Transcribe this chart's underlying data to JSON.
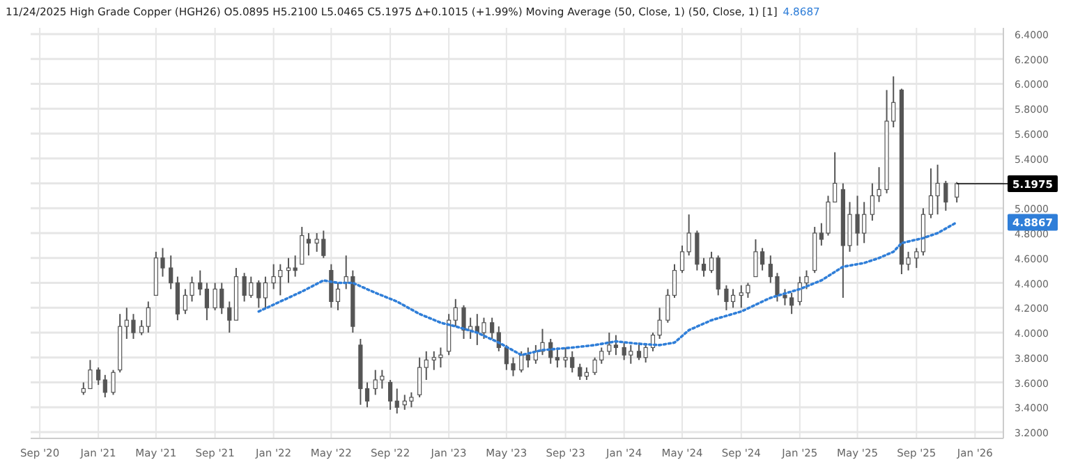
{
  "chart_data": {
    "type": "candlestick",
    "title": "11/24/2025 High Grade Copper (HGH26) O5.0895 H5.2100 L5.0465 C5.1975 Δ+0.1015 (+1.99%) Moving Average (50, Close, 1)  (50, Close, 1) [1]",
    "subtitle": "4.8687",
    "x": [
      "2020-12-01",
      "2020-12-15",
      "2021-01-01",
      "2021-01-15",
      "2021-02-01",
      "2021-02-15",
      "2021-03-01",
      "2021-03-15",
      "2021-04-01",
      "2021-04-15",
      "2021-05-01",
      "2021-05-15",
      "2021-06-01",
      "2021-06-15",
      "2021-07-01",
      "2021-07-15",
      "2021-08-01",
      "2021-08-15",
      "2021-09-01",
      "2021-09-15",
      "2021-10-01",
      "2021-10-15",
      "2021-11-01",
      "2021-11-15",
      "2021-12-01",
      "2021-12-15",
      "2022-01-01",
      "2022-01-15",
      "2022-02-01",
      "2022-02-15",
      "2022-03-01",
      "2022-03-15",
      "2022-04-01",
      "2022-04-15",
      "2022-05-01",
      "2022-05-15",
      "2022-06-01",
      "2022-06-15",
      "2022-07-01",
      "2022-07-15",
      "2022-08-01",
      "2022-08-15",
      "2022-09-01",
      "2022-09-15",
      "2022-10-01",
      "2022-10-15",
      "2022-11-01",
      "2022-11-15",
      "2022-12-01",
      "2022-12-15",
      "2023-01-01",
      "2023-01-15",
      "2023-02-01",
      "2023-02-15",
      "2023-03-01",
      "2023-03-15",
      "2023-04-01",
      "2023-04-15",
      "2023-05-01",
      "2023-05-15",
      "2023-06-01",
      "2023-06-15",
      "2023-07-01",
      "2023-07-15",
      "2023-08-01",
      "2023-08-15",
      "2023-09-01",
      "2023-09-15",
      "2023-10-01",
      "2023-10-15",
      "2023-11-01",
      "2023-11-15",
      "2023-12-01",
      "2023-12-15",
      "2024-01-01",
      "2024-01-15",
      "2024-02-01",
      "2024-02-15",
      "2024-03-01",
      "2024-03-15",
      "2024-04-01",
      "2024-04-15",
      "2024-05-01",
      "2024-05-15",
      "2024-06-01",
      "2024-06-15",
      "2024-07-01",
      "2024-07-15",
      "2024-08-01",
      "2024-08-15",
      "2024-09-01",
      "2024-09-15",
      "2024-10-01",
      "2024-10-15",
      "2024-11-01",
      "2024-11-15",
      "2024-12-01",
      "2024-12-15",
      "2025-01-01",
      "2025-01-15",
      "2025-02-01",
      "2025-02-15",
      "2025-03-01",
      "2025-03-15",
      "2025-04-01",
      "2025-04-15",
      "2025-05-01",
      "2025-05-15",
      "2025-06-01",
      "2025-06-15",
      "2025-07-01",
      "2025-07-15",
      "2025-08-01",
      "2025-08-15",
      "2025-09-01",
      "2025-09-15",
      "2025-10-01",
      "2025-10-15",
      "2025-11-01",
      "2025-11-24"
    ],
    "ohlc": [
      [
        3.52,
        3.6,
        3.5,
        3.55
      ],
      [
        3.55,
        3.78,
        3.55,
        3.7
      ],
      [
        3.7,
        3.72,
        3.58,
        3.62
      ],
      [
        3.62,
        3.66,
        3.48,
        3.52
      ],
      [
        3.52,
        3.7,
        3.5,
        3.68
      ],
      [
        3.7,
        4.15,
        3.68,
        4.05
      ],
      [
        4.05,
        4.2,
        3.95,
        4.1
      ],
      [
        4.1,
        4.15,
        3.95,
        4.0
      ],
      [
        4.0,
        4.1,
        3.98,
        4.05
      ],
      [
        4.05,
        4.25,
        4.0,
        4.2
      ],
      [
        4.3,
        4.65,
        4.3,
        4.6
      ],
      [
        4.6,
        4.68,
        4.45,
        4.52
      ],
      [
        4.52,
        4.62,
        4.35,
        4.4
      ],
      [
        4.4,
        4.45,
        4.1,
        4.15
      ],
      [
        4.18,
        4.35,
        4.15,
        4.3
      ],
      [
        4.3,
        4.45,
        4.25,
        4.4
      ],
      [
        4.4,
        4.5,
        4.3,
        4.35
      ],
      [
        4.35,
        4.4,
        4.1,
        4.2
      ],
      [
        4.2,
        4.4,
        4.18,
        4.35
      ],
      [
        4.35,
        4.4,
        4.15,
        4.2
      ],
      [
        4.2,
        4.25,
        4.0,
        4.1
      ],
      [
        4.1,
        4.52,
        4.1,
        4.45
      ],
      [
        4.45,
        4.48,
        4.25,
        4.3
      ],
      [
        4.3,
        4.45,
        4.28,
        4.4
      ],
      [
        4.4,
        4.42,
        4.2,
        4.28
      ],
      [
        4.28,
        4.45,
        4.2,
        4.4
      ],
      [
        4.4,
        4.55,
        4.35,
        4.45
      ],
      [
        4.45,
        4.55,
        4.3,
        4.5
      ],
      [
        4.5,
        4.6,
        4.4,
        4.52
      ],
      [
        4.52,
        4.62,
        4.45,
        4.5
      ],
      [
        4.55,
        4.85,
        4.55,
        4.78
      ],
      [
        4.75,
        4.8,
        4.62,
        4.72
      ],
      [
        4.72,
        4.8,
        4.65,
        4.75
      ],
      [
        4.75,
        4.82,
        4.6,
        4.62
      ],
      [
        4.5,
        4.55,
        4.2,
        4.25
      ],
      [
        4.25,
        4.4,
        4.18,
        4.35
      ],
      [
        4.4,
        4.62,
        4.35,
        4.45
      ],
      [
        4.45,
        4.5,
        4.0,
        4.05
      ],
      [
        3.9,
        3.95,
        3.42,
        3.55
      ],
      [
        3.55,
        3.6,
        3.4,
        3.45
      ],
      [
        3.55,
        3.7,
        3.5,
        3.62
      ],
      [
        3.62,
        3.7,
        3.55,
        3.65
      ],
      [
        3.6,
        3.62,
        3.38,
        3.45
      ],
      [
        3.45,
        3.55,
        3.35,
        3.4
      ],
      [
        3.42,
        3.5,
        3.38,
        3.45
      ],
      [
        3.45,
        3.52,
        3.4,
        3.48
      ],
      [
        3.5,
        3.8,
        3.48,
        3.72
      ],
      [
        3.72,
        3.85,
        3.62,
        3.78
      ],
      [
        3.78,
        3.85,
        3.7,
        3.8
      ],
      [
        3.8,
        3.88,
        3.72,
        3.82
      ],
      [
        3.85,
        4.15,
        3.82,
        4.1
      ],
      [
        4.1,
        4.27,
        4.05,
        4.2
      ],
      [
        4.2,
        4.22,
        3.95,
        4.02
      ],
      [
        4.02,
        4.12,
        3.95,
        4.05
      ],
      [
        4.05,
        4.15,
        3.9,
        4.0
      ],
      [
        4.0,
        4.12,
        3.95,
        4.08
      ],
      [
        4.08,
        4.12,
        3.95,
        4.0
      ],
      [
        4.0,
        4.05,
        3.85,
        3.88
      ],
      [
        3.88,
        3.9,
        3.7,
        3.75
      ],
      [
        3.75,
        3.8,
        3.65,
        3.7
      ],
      [
        3.7,
        3.85,
        3.68,
        3.82
      ],
      [
        3.82,
        3.88,
        3.72,
        3.78
      ],
      [
        3.78,
        3.9,
        3.75,
        3.85
      ],
      [
        3.85,
        4.03,
        3.82,
        3.92
      ],
      [
        3.92,
        3.95,
        3.75,
        3.8
      ],
      [
        3.8,
        3.88,
        3.72,
        3.78
      ],
      [
        3.78,
        3.88,
        3.72,
        3.8
      ],
      [
        3.8,
        3.85,
        3.68,
        3.72
      ],
      [
        3.72,
        3.75,
        3.62,
        3.65
      ],
      [
        3.65,
        3.72,
        3.62,
        3.68
      ],
      [
        3.68,
        3.8,
        3.66,
        3.78
      ],
      [
        3.78,
        3.88,
        3.75,
        3.85
      ],
      [
        3.85,
        4.0,
        3.82,
        3.9
      ],
      [
        3.9,
        3.98,
        3.82,
        3.88
      ],
      [
        3.88,
        3.92,
        3.78,
        3.82
      ],
      [
        3.82,
        3.9,
        3.75,
        3.85
      ],
      [
        3.85,
        3.92,
        3.78,
        3.8
      ],
      [
        3.8,
        3.9,
        3.76,
        3.88
      ],
      [
        3.88,
        4.0,
        3.85,
        3.98
      ],
      [
        3.98,
        4.2,
        3.95,
        4.1
      ],
      [
        4.1,
        4.35,
        4.08,
        4.3
      ],
      [
        4.3,
        4.55,
        4.28,
        4.5
      ],
      [
        4.5,
        4.7,
        4.48,
        4.65
      ],
      [
        4.65,
        4.95,
        4.62,
        4.8
      ],
      [
        4.8,
        4.82,
        4.5,
        4.55
      ],
      [
        4.55,
        4.6,
        4.45,
        4.5
      ],
      [
        4.5,
        4.65,
        4.48,
        4.6
      ],
      [
        4.6,
        4.62,
        4.3,
        4.35
      ],
      [
        4.35,
        4.38,
        4.18,
        4.25
      ],
      [
        4.25,
        4.35,
        4.2,
        4.3
      ],
      [
        4.3,
        4.38,
        4.2,
        4.32
      ],
      [
        4.32,
        4.4,
        4.28,
        4.38
      ],
      [
        4.45,
        4.75,
        4.45,
        4.65
      ],
      [
        4.65,
        4.68,
        4.5,
        4.55
      ],
      [
        4.55,
        4.62,
        4.4,
        4.45
      ],
      [
        4.45,
        4.48,
        4.25,
        4.3
      ],
      [
        4.3,
        4.35,
        4.22,
        4.28
      ],
      [
        4.28,
        4.32,
        4.15,
        4.22
      ],
      [
        4.25,
        4.45,
        4.22,
        4.4
      ],
      [
        4.4,
        4.5,
        4.35,
        4.45
      ],
      [
        4.5,
        4.85,
        4.48,
        4.8
      ],
      [
        4.8,
        4.88,
        4.7,
        4.75
      ],
      [
        4.8,
        5.1,
        4.78,
        5.05
      ],
      [
        5.05,
        5.45,
        5.05,
        5.2
      ],
      [
        5.15,
        5.2,
        4.28,
        4.7
      ],
      [
        4.7,
        5.05,
        4.65,
        4.95
      ],
      [
        4.95,
        5.1,
        4.7,
        4.8
      ],
      [
        4.8,
        5.05,
        4.72,
        4.95
      ],
      [
        4.95,
        5.2,
        4.9,
        5.1
      ],
      [
        5.1,
        5.33,
        5.05,
        5.15
      ],
      [
        5.15,
        5.95,
        5.12,
        5.7
      ],
      [
        5.7,
        6.06,
        5.65,
        5.85
      ],
      [
        5.95,
        5.96,
        4.47,
        4.55
      ],
      [
        4.55,
        4.65,
        4.5,
        4.6
      ],
      [
        4.6,
        4.68,
        4.52,
        4.65
      ],
      [
        4.65,
        5.0,
        4.62,
        4.95
      ],
      [
        4.95,
        5.32,
        4.92,
        5.1
      ],
      [
        5.1,
        5.35,
        4.95,
        5.2
      ],
      [
        5.2,
        5.22,
        4.98,
        5.05
      ],
      [
        5.0895,
        5.21,
        5.0465,
        5.1975
      ]
    ],
    "color": "#555555",
    "series": [
      {
        "type": "line",
        "color": "#2f7ed8",
        "line_style": "dotted",
        "x": [
          "2021-12-01",
          "2022-01-15",
          "2022-03-01",
          "2022-04-15",
          "2022-05-15",
          "2022-06-15",
          "2022-08-01",
          "2022-09-15",
          "2022-11-01",
          "2022-12-15",
          "2023-01-15",
          "2023-03-01",
          "2023-04-15",
          "2023-06-01",
          "2023-07-15",
          "2023-09-15",
          "2023-11-01",
          "2023-12-15",
          "2024-02-01",
          "2024-03-15",
          "2024-04-15",
          "2024-05-15",
          "2024-07-01",
          "2024-09-01",
          "2024-11-01",
          "2025-01-01",
          "2025-02-15",
          "2025-04-01",
          "2025-05-15",
          "2025-06-15",
          "2025-07-15",
          "2025-08-01",
          "2025-09-15",
          "2025-10-15",
          "2025-11-24"
        ],
        "values": [
          4.17,
          4.25,
          4.33,
          4.42,
          4.4,
          4.4,
          4.32,
          4.25,
          4.15,
          4.08,
          4.05,
          4.0,
          3.92,
          3.82,
          3.86,
          3.88,
          3.9,
          3.93,
          3.91,
          3.9,
          3.92,
          4.02,
          4.1,
          4.17,
          4.28,
          4.35,
          4.42,
          4.53,
          4.56,
          4.6,
          4.65,
          4.72,
          4.76,
          4.8,
          4.8867
        ]
      }
    ],
    "annotations": [
      {
        "text": "5.1975",
        "x": "2025-11-24",
        "y": 5.1975
      },
      "4.8867"
    ],
    "xlim": [
      "2020-08-13",
      "2026-03-01"
    ],
    "xticks": [
      {
        "value": "2020-09-01",
        "label": "Sep '20"
      },
      {
        "value": "2021-01-01",
        "label": "Jan '21"
      },
      {
        "value": "2021-05-01",
        "label": "May '21"
      },
      {
        "value": "2021-09-01",
        "label": "Sep '21"
      },
      {
        "value": "2022-01-01",
        "label": "Jan '22"
      },
      {
        "value": "2022-05-01",
        "label": "May '22"
      },
      {
        "value": "2022-09-01",
        "label": "Sep '22"
      },
      {
        "value": "2023-01-01",
        "label": "Jan '23"
      },
      {
        "value": "2023-05-01",
        "label": "May '23"
      },
      {
        "value": "2023-09-01",
        "label": "Sep '23"
      },
      {
        "value": "2024-01-01",
        "label": "Jan '24"
      },
      {
        "value": "2024-05-01",
        "label": "May '24"
      },
      {
        "value": "2024-09-01",
        "label": "Sep '24"
      },
      {
        "value": "2025-01-01",
        "label": "Jan '25"
      },
      {
        "value": "2025-05-01",
        "label": "May '25"
      },
      {
        "value": "2025-09-01",
        "label": "Sep '25"
      },
      {
        "value": "2026-01-01",
        "label": "Jan '26"
      }
    ],
    "ylim": [
      3.15,
      6.45
    ],
    "yticks": [
      {
        "value": 3.2,
        "label": "3.2000"
      },
      {
        "value": 3.4,
        "label": "3.4000"
      },
      {
        "value": 3.6,
        "label": "3.6000"
      },
      {
        "value": 3.8,
        "label": "3.8000"
      },
      {
        "value": 4.0,
        "label": "4.0000"
      },
      {
        "value": 4.2,
        "label": "4.2000"
      },
      {
        "value": 4.4,
        "label": "4.4000"
      },
      {
        "value": 4.6,
        "label": "4.6000"
      },
      {
        "value": 4.8,
        "label": "4.8000"
      },
      {
        "value": 5.0,
        "label": "5.0000"
      },
      {
        "value": 5.2,
        "label": null
      },
      {
        "value": 5.4,
        "label": "5.4000"
      },
      {
        "value": 5.6,
        "label": "5.6000"
      },
      {
        "value": 5.8,
        "label": "5.8000"
      },
      {
        "value": 6.0,
        "label": "6.0000"
      },
      {
        "value": 6.2,
        "label": "6.2000"
      },
      {
        "value": 6.4,
        "label": "6.4000"
      }
    ],
    "grid": true,
    "marker": "none"
  }
}
